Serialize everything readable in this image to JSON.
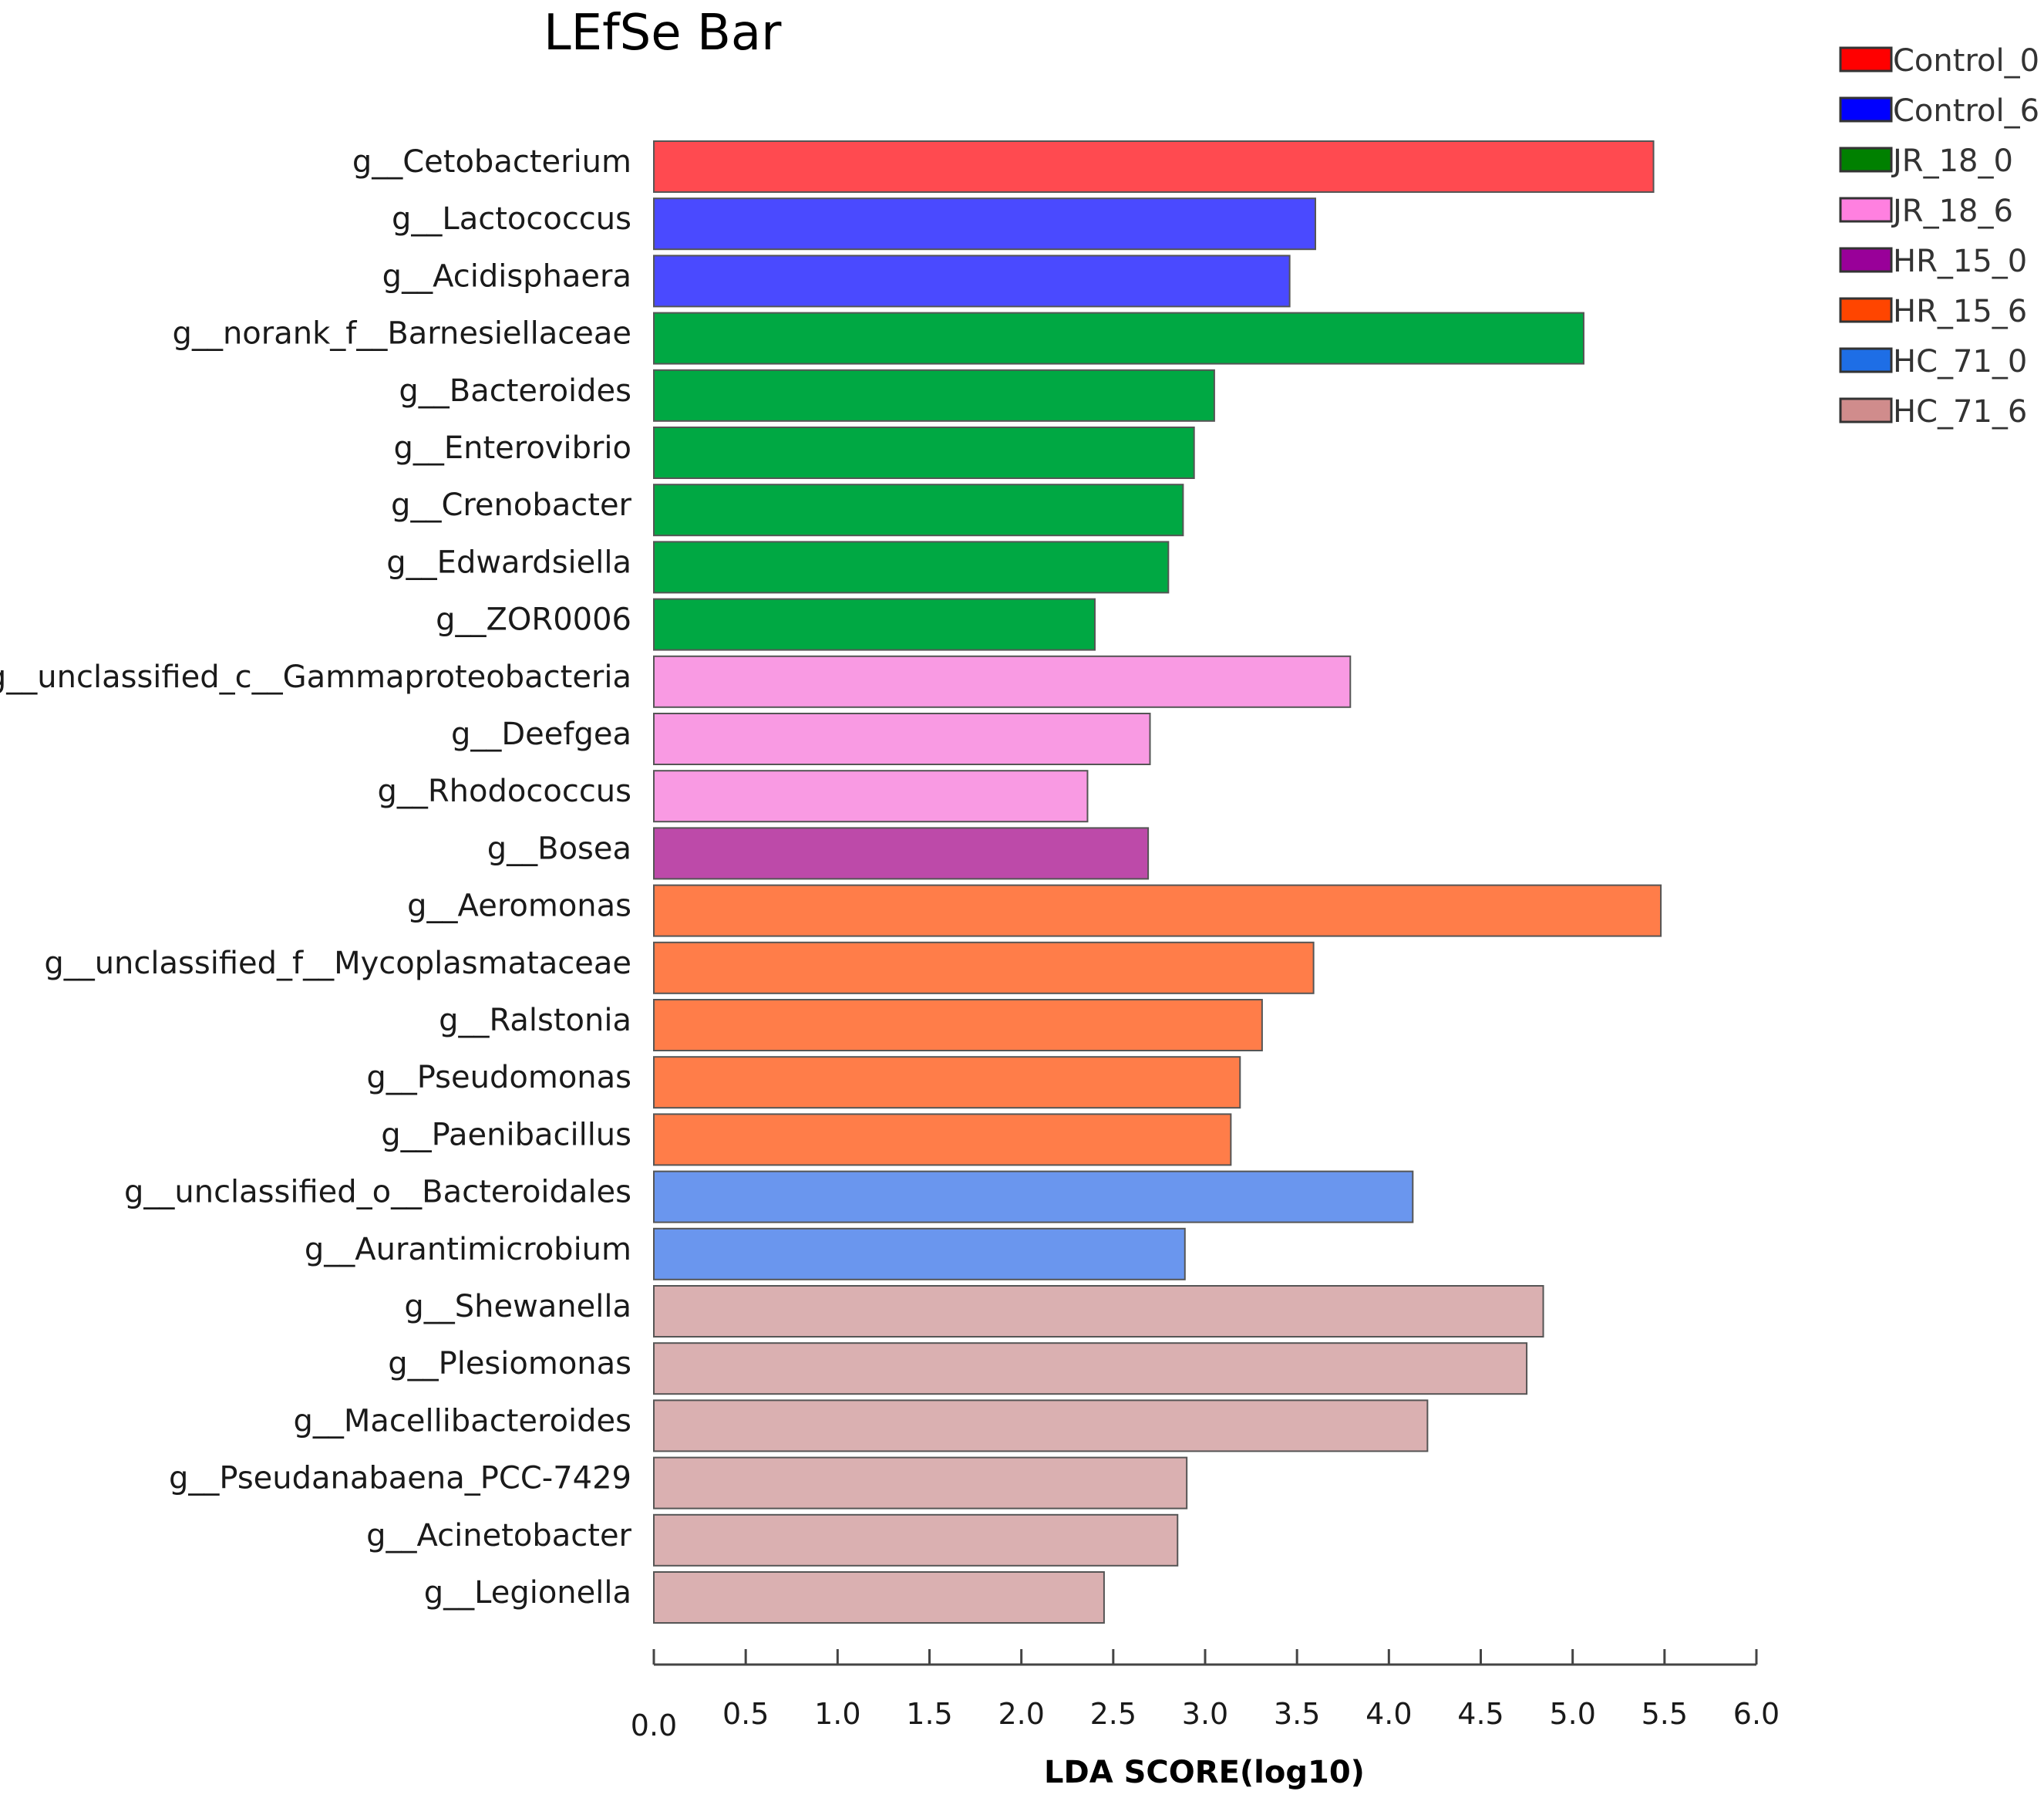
{
  "chart_data": {
    "type": "bar",
    "orientation": "horizontal",
    "title": "LEfSe Bar",
    "xlabel": "LDA SCORE(log10)",
    "ylabel": "",
    "xlim": [
      0,
      6
    ],
    "xticks": [
      "0.0",
      "0.5",
      "1.0",
      "1.5",
      "2.0",
      "2.5",
      "3.0",
      "3.5",
      "4.0",
      "4.5",
      "5.0",
      "5.5",
      "6.0"
    ],
    "grid": false,
    "legend_position": "top-right",
    "legend": [
      {
        "name": "Control_0",
        "color": "#ff0000"
      },
      {
        "name": "Control_6",
        "color": "#0000ff"
      },
      {
        "name": "JR_18_0",
        "color": "#008000"
      },
      {
        "name": "JR_18_6",
        "color": "#ff80e0"
      },
      {
        "name": "HR_15_0",
        "color": "#990099"
      },
      {
        "name": "HR_15_6",
        "color": "#ff4500"
      },
      {
        "name": "HC_71_0",
        "color": "#1e6ee6"
      },
      {
        "name": "HC_71_6",
        "color": "#d08c8c"
      }
    ],
    "group_fill_colors": {
      "Control_0": "#ff4a50",
      "Control_6": "#4a4aff",
      "JR_18_0": "#00a843",
      "JR_18_6": "#f99ae3",
      "HR_15_0": "#bd4aa9",
      "HR_15_6": "#ff7d49",
      "HC_71_0": "#6a96ee",
      "HC_71_6": "#dab0b1"
    },
    "categories": [
      "g__Cetobacterium",
      "g__Lactococcus",
      "g__Acidisphaera",
      "g__norank_f__Barnesiellaceae",
      "g__Bacteroides",
      "g__Enterovibrio",
      "g__Crenobacter",
      "g__Edwardsiella",
      "g__ZOR0006",
      "g__unclassified_c__Gammaproteobacteria",
      "g__Deefgea",
      "g__Rhodococcus",
      "g__Bosea",
      "g__Aeromonas",
      "g__unclassified_f__Mycoplasmataceae",
      "g__Ralstonia",
      "g__Pseudomonas",
      "g__Paenibacillus",
      "g__unclassified_o__Bacteroidales",
      "g__Aurantimicrobium",
      "g__Shewanella",
      "g__Plesiomonas",
      "g__Macellibacteroides",
      "g__Pseudanabaena_PCC-7429",
      "g__Acinetobacter",
      "g__Legionella"
    ],
    "values": [
      5.44,
      3.6,
      3.46,
      5.06,
      3.05,
      2.94,
      2.88,
      2.8,
      2.4,
      3.79,
      2.7,
      2.36,
      2.69,
      5.48,
      3.59,
      3.31,
      3.19,
      3.14,
      4.13,
      2.89,
      4.84,
      4.75,
      4.21,
      2.9,
      2.85,
      2.45
    ],
    "groups": [
      "Control_0",
      "Control_6",
      "Control_6",
      "JR_18_0",
      "JR_18_0",
      "JR_18_0",
      "JR_18_0",
      "JR_18_0",
      "JR_18_0",
      "JR_18_6",
      "JR_18_6",
      "JR_18_6",
      "HR_15_0",
      "HR_15_6",
      "HR_15_6",
      "HR_15_6",
      "HR_15_6",
      "HR_15_6",
      "HC_71_0",
      "HC_71_0",
      "HC_71_6",
      "HC_71_6",
      "HC_71_6",
      "HC_71_6",
      "HC_71_6",
      "HC_71_6"
    ]
  }
}
